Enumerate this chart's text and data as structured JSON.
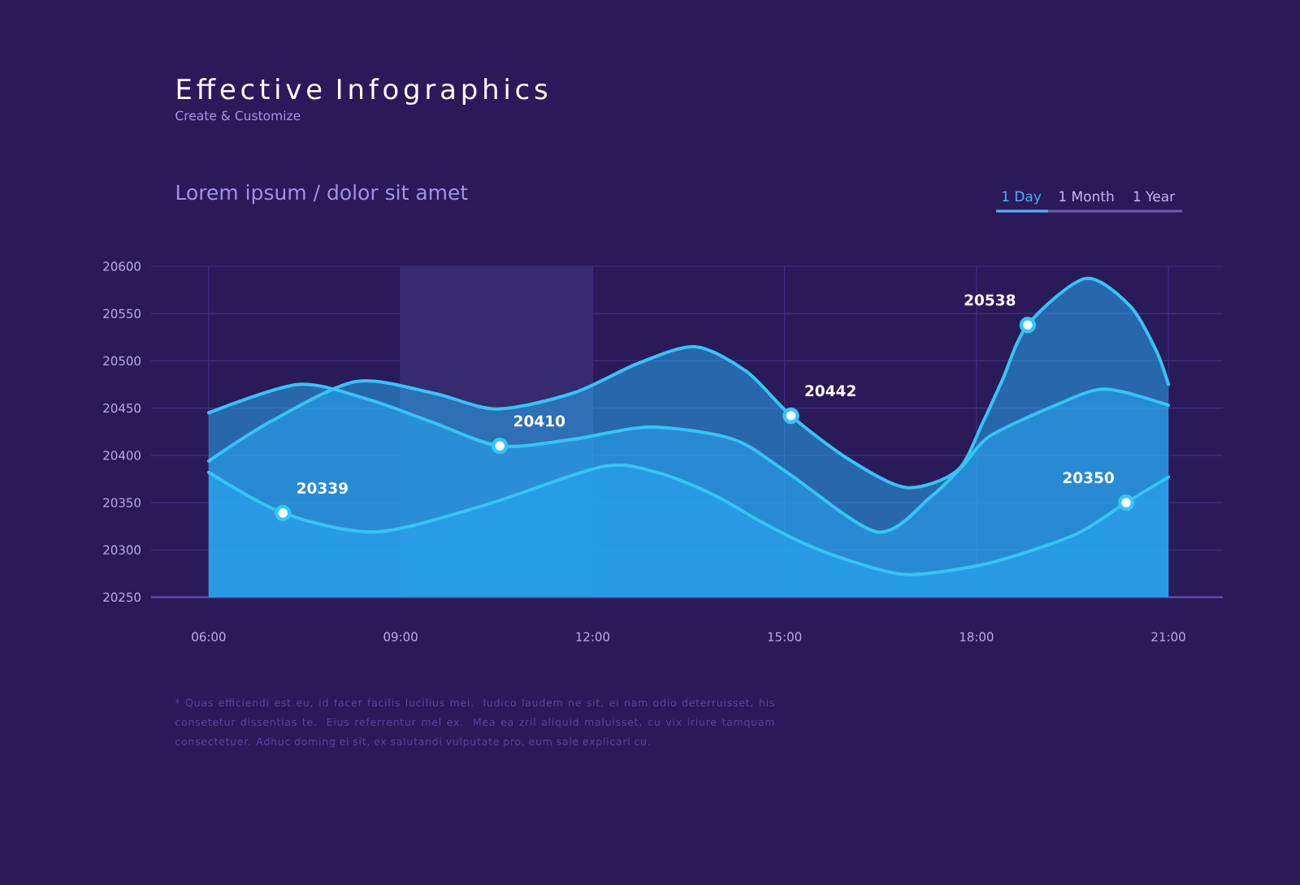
{
  "chart_data": {
    "type": "area",
    "title": "Effective Infographics",
    "subtitle": "Create & Customize",
    "annotations": [
      "Lorem ipsum / dolor sit amet",
      "1 Day",
      "1 Month",
      "1 Year",
      "* Quas efficiendi est eu, id facer facilis lucilius mei. Iudico laudem ne sit, ei nam odio deterruisset, his consetetur dissentias te. Eius referrentur mel ex. Mea ea zril aliquid maluisset, cu vix iriure tamquam consectetuer. Adhuc doming ei sit, ex salutandi vulputate pro, eum sale explicari cu."
    ],
    "xlim": [
      5.1,
      21.85
    ],
    "xticks": [
      {
        "value": 6,
        "label": "06:00"
      },
      {
        "value": 9,
        "label": "09:00"
      },
      {
        "value": 12,
        "label": "12:00"
      },
      {
        "value": 15,
        "label": "15:00"
      },
      {
        "value": 18,
        "label": "18:00"
      },
      {
        "value": 21,
        "label": "21:00"
      }
    ],
    "ylim": [
      20250,
      20600
    ],
    "yticks": [
      20250,
      20300,
      20350,
      20400,
      20450,
      20500,
      20550,
      20600
    ],
    "grid": true,
    "line_style": "solid",
    "bands": [
      {
        "axis": "x",
        "from": 9,
        "to": 12,
        "color": "#372a6e"
      }
    ],
    "series": [
      {
        "color": "#35c5f5",
        "x": [
          6,
          7,
          8.3,
          9.5,
          10.5,
          11.7,
          12.7,
          13.6,
          14.4,
          15.1,
          16,
          16.9,
          17.7,
          18.1,
          18.4,
          18.8,
          19.7,
          20.4,
          20.8,
          21
        ],
        "values": [
          20394,
          20437,
          20478,
          20466,
          20449,
          20466,
          20497,
          20515,
          20489,
          20442,
          20396,
          20366,
          20384,
          20435,
          20479,
          20538,
          20587,
          20558,
          20512,
          20475
        ],
        "value_labels": [
          null,
          null,
          null,
          null,
          null,
          null,
          null,
          null,
          null,
          "20442",
          null,
          null,
          null,
          null,
          null,
          "20538",
          null,
          null,
          null,
          null
        ]
      },
      {
        "color": "#35c5f5",
        "x": [
          6,
          7.4,
          8.5,
          9.5,
          10.55,
          11.7,
          12.9,
          14.2,
          15.04,
          16.45,
          17.3,
          17.8,
          18.2,
          19.2,
          20,
          21
        ],
        "values": [
          20445,
          20475,
          20459,
          20435,
          20410,
          20417,
          20430,
          20417,
          20382,
          20319,
          20357,
          20390,
          20420,
          20452,
          20470,
          20453
        ],
        "value_labels": [
          null,
          null,
          null,
          null,
          "20410",
          null,
          null,
          null,
          null,
          null,
          null,
          null,
          null,
          null,
          null,
          null
        ]
      },
      {
        "color": "#35c5f5",
        "x": [
          6,
          7.16,
          8.6,
          10.3,
          12.15,
          13,
          13.9,
          14.6,
          15.3,
          16,
          16.9,
          18,
          18.8,
          19.6,
          20.34,
          21
        ],
        "values": [
          20382,
          20339,
          20319,
          20347,
          20388,
          20382,
          20358,
          20331,
          20307,
          20289,
          20274,
          20283,
          20298,
          20318,
          20350,
          20377
        ],
        "value_labels": [
          null,
          "20339",
          null,
          null,
          null,
          null,
          null,
          null,
          null,
          null,
          null,
          null,
          null,
          null,
          "20350",
          null
        ]
      }
    ]
  }
}
